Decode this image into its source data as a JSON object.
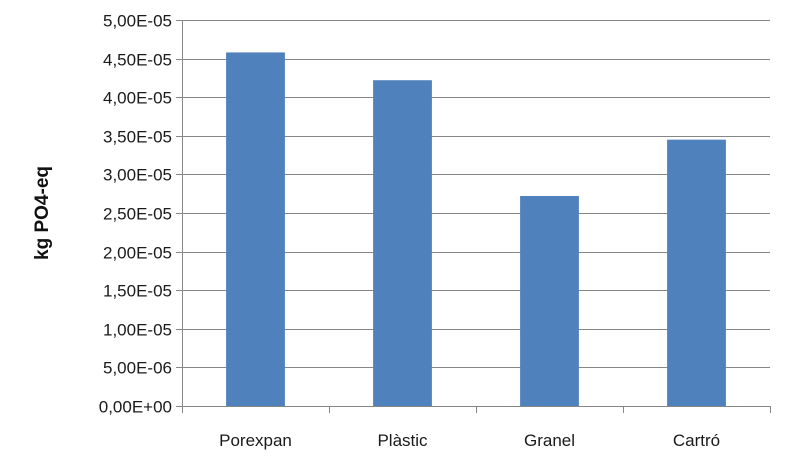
{
  "chart_data": {
    "type": "bar",
    "categories": [
      "Porexpan",
      "Plàstic",
      "Granel",
      "Cartró"
    ],
    "values": [
      4.58e-05,
      4.22e-05,
      2.72e-05,
      3.45e-05
    ],
    "title": "",
    "xlabel": "",
    "ylabel": "kg PO4-eq",
    "ylim": [
      0,
      5e-05
    ],
    "yticks": [
      0,
      5e-06,
      1e-05,
      1.5e-05,
      2e-05,
      2.5e-05,
      3e-05,
      3.5e-05,
      4e-05,
      4.5e-05,
      5e-05
    ],
    "ytick_labels": [
      "0,00E+00",
      "5,00E-06",
      "1,00E-05",
      "1,50E-05",
      "2,00E-05",
      "2,50E-05",
      "3,00E-05",
      "3,50E-05",
      "4,00E-05",
      "4,50E-05",
      "5,00E-05"
    ],
    "grid": true,
    "legend": "none",
    "colors": {
      "bar": "#4F81BD",
      "grid": "#868686",
      "axis": "#868686"
    }
  }
}
